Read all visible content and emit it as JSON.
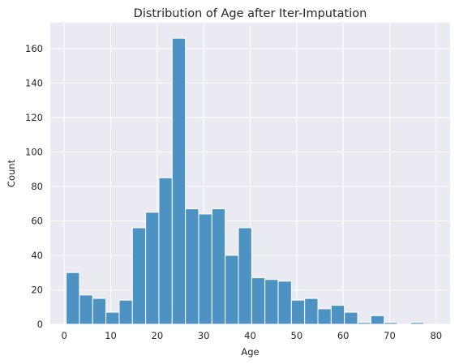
{
  "chart_data": {
    "type": "bar",
    "title": "Distribution of Age after Iter-Imputation",
    "xlabel": "Age",
    "ylabel": "Count",
    "xlim": [
      -3.0,
      83.0
    ],
    "ylim": [
      0,
      175
    ],
    "xticks": [
      0,
      10,
      20,
      30,
      40,
      50,
      60,
      70,
      80
    ],
    "yticks": [
      0,
      20,
      40,
      60,
      80,
      100,
      120,
      140,
      160
    ],
    "grid": true,
    "bar_color": "#4C92C3",
    "bin_edges": [
      0.42,
      3.27,
      6.12,
      8.97,
      11.82,
      14.67,
      17.52,
      20.37,
      23.22,
      26.07,
      28.92,
      31.77,
      34.62,
      37.47,
      40.32,
      43.17,
      46.02,
      48.87,
      51.72,
      54.57,
      57.42,
      60.27,
      63.12,
      65.97,
      68.82,
      71.67,
      74.52,
      77.37,
      80.22
    ],
    "values": [
      30,
      17,
      15,
      7,
      14,
      56,
      65,
      85,
      166,
      67,
      64,
      67,
      40,
      56,
      27,
      26,
      25,
      14,
      15,
      9,
      11,
      7,
      1,
      5,
      1,
      0,
      1,
      0
    ]
  }
}
